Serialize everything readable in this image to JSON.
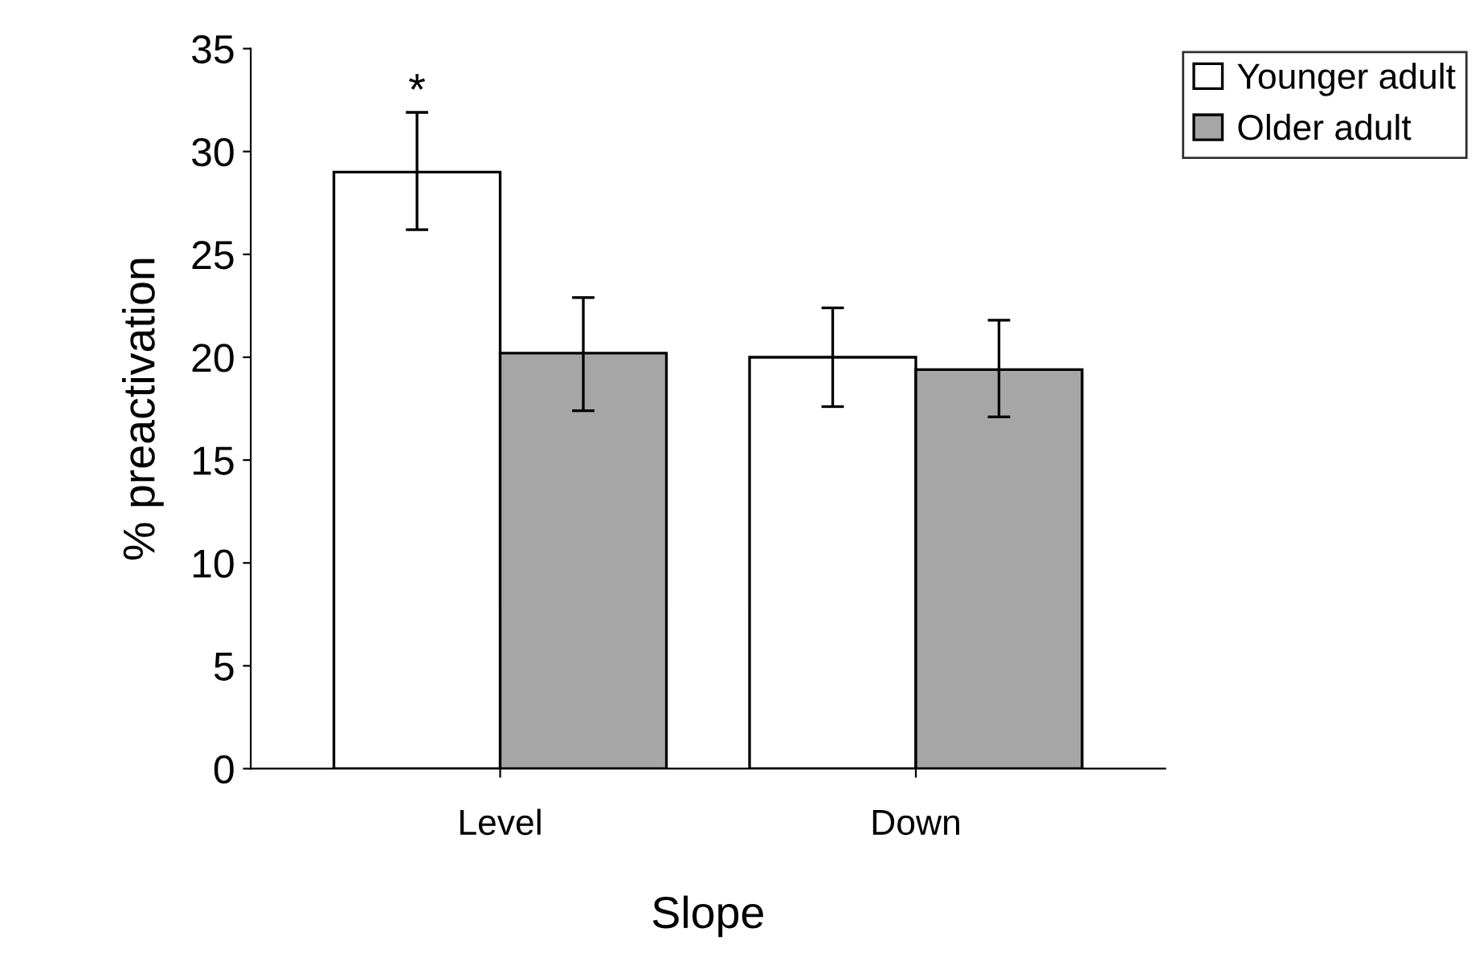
{
  "chart_data": {
    "type": "bar",
    "xlabel": "Slope",
    "ylabel": "% preactivation",
    "categories": [
      "Level",
      "Down"
    ],
    "series": [
      {
        "name": "Younger adult",
        "color": "#ffffff",
        "values": [
          29.0,
          20.0
        ],
        "errors": [
          [
            26.2,
            31.9
          ],
          [
            17.6,
            22.4
          ]
        ]
      },
      {
        "name": "Older adult",
        "color": "#a6a6a6",
        "values": [
          20.2,
          19.4
        ],
        "errors": [
          [
            17.4,
            22.9
          ],
          [
            17.1,
            21.8
          ]
        ]
      }
    ],
    "ylim": [
      0,
      35
    ],
    "yticks": [
      0,
      5,
      10,
      15,
      20,
      25,
      30,
      35
    ],
    "grid": false,
    "legend": "top right",
    "annotations": [
      "*"
    ]
  }
}
